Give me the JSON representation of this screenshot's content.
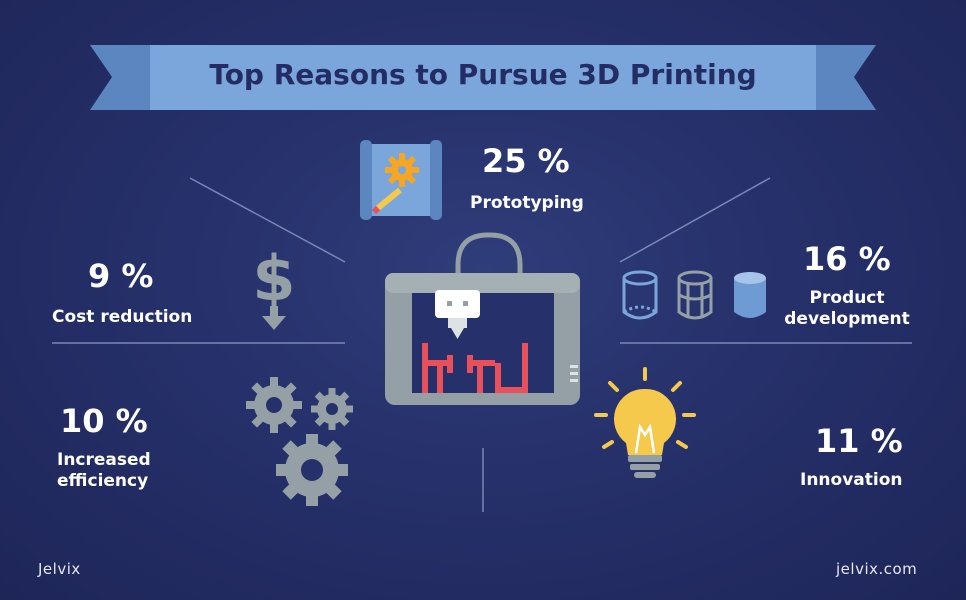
{
  "title": "Top Reasons to Pursue 3D Printing",
  "reasons": [
    {
      "percent": "25 %",
      "label": "Prototyping",
      "icon": "blueprint-gear-icon"
    },
    {
      "percent": "16 %",
      "label_line1": "Product",
      "label_line2": "development",
      "icon": "cylinders-icon"
    },
    {
      "percent": "9 %",
      "label": "Cost reduction",
      "icon": "dollar-down-icon"
    },
    {
      "percent": "10 %",
      "label_line1": "Increased",
      "label_line2": "efficiency",
      "icon": "gears-icon"
    },
    {
      "percent": "11 %",
      "label": "Innovation",
      "icon": "lightbulb-icon"
    }
  ],
  "footer": {
    "brand": "Jelvix",
    "url": "jelvix.com"
  },
  "colors": {
    "background": "#26306a",
    "banner": "#7aa6dc",
    "banner_dark": "#5b86bf",
    "title": "#232c63",
    "printer": "#94a0a6",
    "print_red": "#e8505b",
    "bulb": "#f5c94b",
    "icon_blue": "#7aa6dc"
  }
}
